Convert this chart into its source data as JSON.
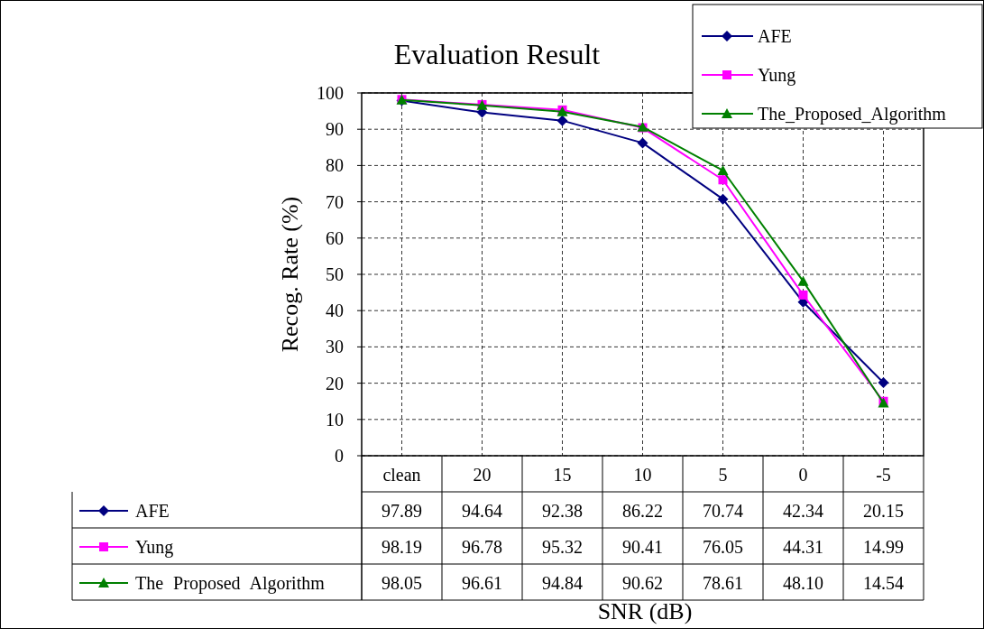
{
  "chart_data": {
    "type": "line",
    "title": "Evaluation Result",
    "xlabel": "SNR (dB)",
    "ylabel": "Recog. Rate (%)",
    "categories": [
      "clean",
      "20",
      "15",
      "10",
      "5",
      "0",
      "-5"
    ],
    "series": [
      {
        "name": "AFE",
        "color": "#000080",
        "marker": "diamond",
        "values": [
          97.89,
          94.64,
          92.38,
          86.22,
          70.74,
          42.34,
          20.15
        ]
      },
      {
        "name": "Yung",
        "color": "#ff00ff",
        "marker": "square",
        "values": [
          98.19,
          96.78,
          95.32,
          90.41,
          76.05,
          44.31,
          14.99
        ]
      },
      {
        "name": "The_Proposed_Algorithm",
        "color": "#008000",
        "marker": "triangle",
        "values": [
          98.05,
          96.61,
          94.84,
          90.62,
          78.61,
          48.1,
          14.54
        ],
        "value_labels": [
          "98.05",
          "96.61",
          "94.84",
          "90.62",
          "78.61",
          "48.10",
          "14.54"
        ]
      }
    ],
    "annotations": [
      "The Proposed Algorithm"
    ],
    "ylim": [
      0,
      100
    ],
    "yticks": [
      0,
      10,
      20,
      30,
      40,
      50,
      60,
      70,
      80,
      90,
      100
    ],
    "grid": true,
    "legend": "top right",
    "data_labels": true
  }
}
